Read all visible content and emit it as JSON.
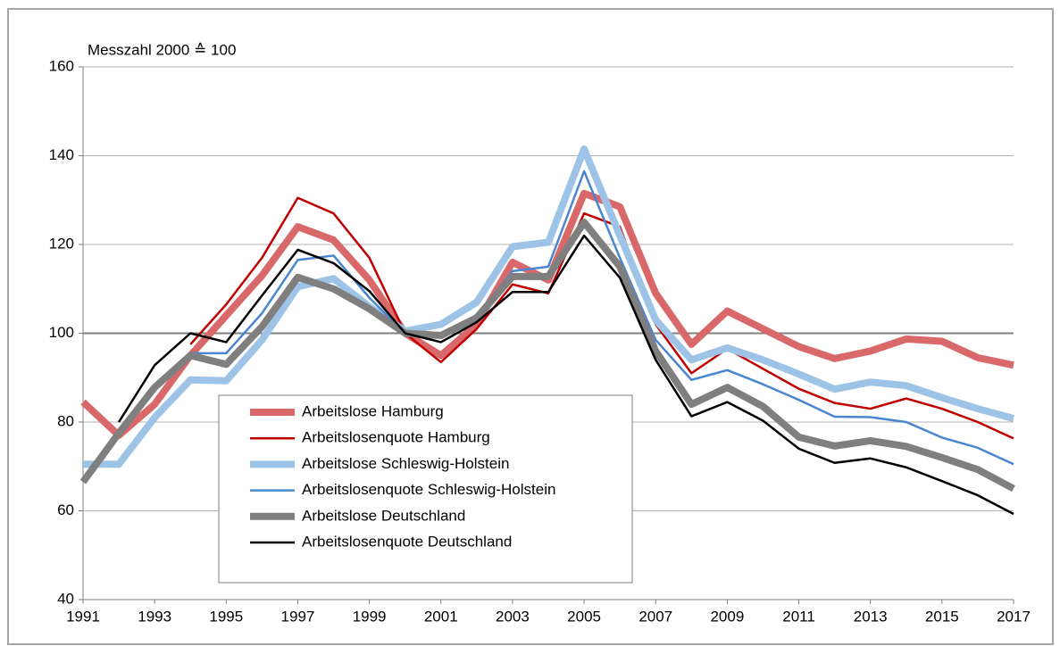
{
  "chart_data": {
    "type": "line",
    "y_label": "Messzahl 2000 ≙ 100",
    "x": [
      1991,
      1992,
      1993,
      1994,
      1995,
      1996,
      1997,
      1998,
      1999,
      2000,
      2001,
      2002,
      2003,
      2004,
      2005,
      2006,
      2007,
      2008,
      2009,
      2010,
      2011,
      2012,
      2013,
      2014,
      2015,
      2016,
      2017
    ],
    "xlim": [
      1991,
      2017
    ],
    "xticks": [
      1991,
      1993,
      1995,
      1997,
      1999,
      2001,
      2003,
      2005,
      2007,
      2009,
      2011,
      2013,
      2015,
      2017
    ],
    "ylim": [
      40,
      160
    ],
    "yticks": [
      40,
      60,
      80,
      100,
      120,
      140,
      160
    ],
    "grid": true,
    "reference_line": 100,
    "series": [
      {
        "name": "Arbeitslose Hamburg",
        "color": "#d9686a",
        "width": 8,
        "values": [
          84.5,
          77,
          84,
          95,
          104,
          113,
          124,
          121,
          112,
          100,
          95,
          102,
          116,
          112,
          131.5,
          128.5,
          109,
          97.5,
          105,
          101,
          97,
          94.3,
          96,
          98.7,
          98.2,
          94.5,
          92.8
        ]
      },
      {
        "name": "Arbeitslosenquote Hamburg",
        "color": "#c00000",
        "width": 2.5,
        "values": [
          null,
          null,
          null,
          97.5,
          106.5,
          117,
          130.5,
          127,
          117,
          100,
          93.5,
          101,
          111,
          109,
          127,
          124,
          102,
          91,
          96.5,
          92,
          87.5,
          84.3,
          83,
          85.3,
          83,
          80,
          76.3
        ]
      },
      {
        "name": "Arbeitslose Schleswig-Holstein",
        "color": "#9dc3e6",
        "width": 8,
        "values": [
          70.5,
          70.5,
          81,
          89.5,
          89.3,
          98.5,
          110.5,
          112.3,
          106,
          100.5,
          102,
          107,
          119.5,
          120.5,
          141.5,
          122,
          103,
          94,
          96.7,
          94,
          90.8,
          87.4,
          89,
          88.2,
          85.5,
          83,
          80.8
        ]
      },
      {
        "name": "Arbeitslosenquote Schleswig-Holstein",
        "color": "#4a86d0",
        "width": 2.5,
        "values": [
          null,
          null,
          null,
          95.5,
          95.5,
          104.5,
          116.5,
          117.5,
          108,
          100,
          99,
          104,
          114,
          115,
          136.5,
          117,
          98.5,
          89.5,
          91.7,
          88.5,
          85,
          81.2,
          81.1,
          80,
          76.5,
          74.2,
          70.5
        ]
      },
      {
        "name": "Arbeitslose Deutschland",
        "color": "#7f7f7f",
        "width": 8,
        "values": [
          66.5,
          77.5,
          87.8,
          95,
          93,
          101.5,
          112.6,
          110,
          105.5,
          100,
          99.5,
          103.5,
          112.8,
          112.8,
          125,
          115,
          96,
          84,
          87.8,
          83.5,
          76.6,
          74.6,
          75.8,
          74.5,
          72,
          69.3,
          65
        ]
      },
      {
        "name": "Arbeitslosenquote Deutschland",
        "color": "#000000",
        "width": 2.5,
        "values": [
          null,
          80,
          92.8,
          100,
          98,
          108.5,
          118.8,
          115.8,
          109.5,
          100,
          98,
          102.5,
          109.3,
          109.3,
          122,
          112.5,
          94,
          81.3,
          84.5,
          80.3,
          74,
          70.8,
          71.8,
          69.8,
          66.7,
          63.5,
          59.3
        ]
      }
    ]
  }
}
